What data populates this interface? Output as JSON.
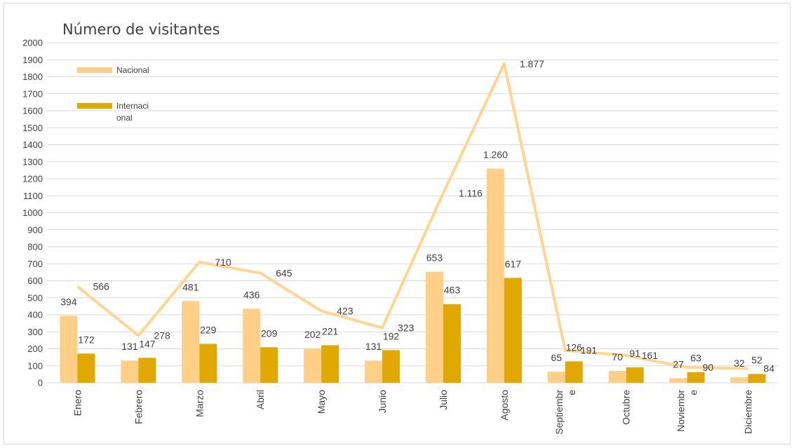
{
  "chart_data": {
    "type": "bar",
    "title": "Número de visitantes",
    "categories": [
      "Enero",
      "Febrero",
      "Marzo",
      "Abril",
      "Mayo",
      "Junio",
      "Julio",
      "Agosto",
      "Septiembre",
      "Octubre",
      "Noviembre",
      "Diciembre"
    ],
    "category_display_lines": [
      [
        "Enero"
      ],
      [
        "Febrero"
      ],
      [
        "Marzo"
      ],
      [
        "Abril"
      ],
      [
        "Mayo"
      ],
      [
        "Junio"
      ],
      [
        "Julio"
      ],
      [
        "Agosto"
      ],
      [
        "Septiembr",
        "e"
      ],
      [
        "Octubre"
      ],
      [
        "Noviembr",
        "e"
      ],
      [
        "Diciembre"
      ]
    ],
    "series": [
      {
        "name": "Nacional",
        "type": "bar",
        "color": "#ffcf87",
        "values": [
          394,
          131,
          481,
          436,
          202,
          131,
          653,
          1260,
          65,
          70,
          27,
          32
        ],
        "labels": [
          "394",
          "131",
          "481",
          "436",
          "202",
          "131",
          "653",
          "1.260",
          "65",
          "70",
          "27",
          "32"
        ]
      },
      {
        "name": "Internacional",
        "type": "bar",
        "color": "#e0a800",
        "values": [
          172,
          147,
          229,
          209,
          221,
          192,
          463,
          617,
          126,
          91,
          63,
          52
        ],
        "labels": [
          "172",
          "147",
          "229",
          "209",
          "221",
          "192",
          "463",
          "617",
          "126",
          "91",
          "63",
          "52"
        ]
      },
      {
        "name": "",
        "type": "line",
        "color": "#ffd58f",
        "values": [
          566,
          278,
          710,
          645,
          423,
          323,
          1116,
          1877,
          191,
          161,
          90,
          84
        ],
        "labels": [
          "566",
          "278",
          "710",
          "645",
          "423",
          "323",
          "1.116",
          "1.877",
          "191",
          "161",
          "90",
          "84"
        ]
      }
    ],
    "legend": {
      "placement": "top-left",
      "entries": [
        {
          "lines": [
            "Nacional"
          ],
          "color": "#ffcf87"
        },
        {
          "lines": [
            "Internaci",
            "onal"
          ],
          "color": "#e0a800"
        }
      ]
    },
    "ylim": [
      0,
      2000
    ],
    "yticks": [
      0,
      100,
      200,
      300,
      400,
      500,
      600,
      700,
      800,
      900,
      1000,
      1100,
      1200,
      1300,
      1400,
      1500,
      1600,
      1700,
      1800,
      1900,
      2000
    ],
    "grid": true,
    "xlabel": "",
    "ylabel": ""
  }
}
